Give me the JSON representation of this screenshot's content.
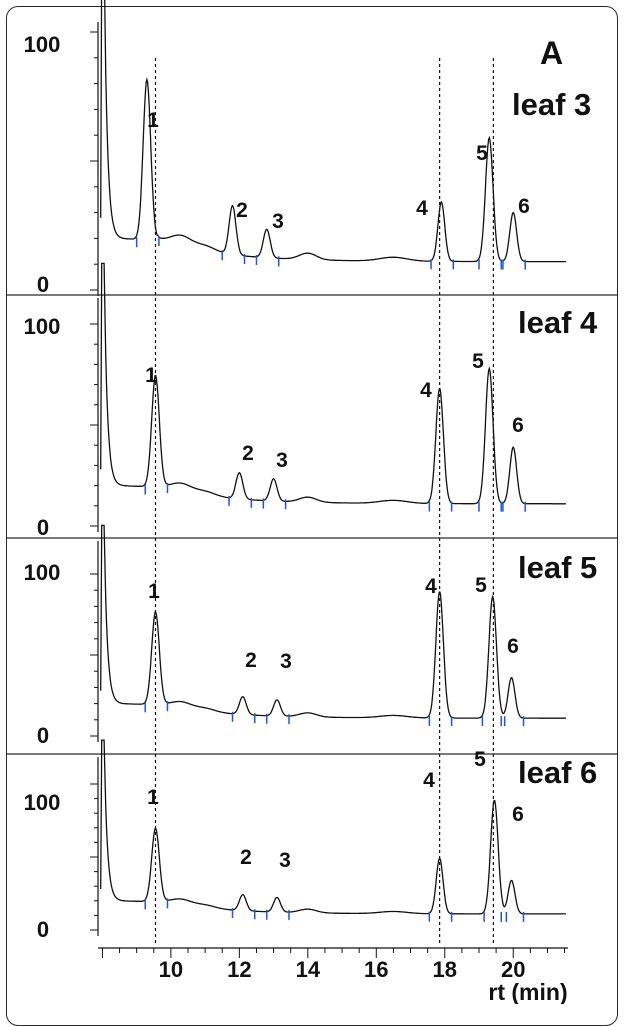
{
  "chart_data": {
    "type": "line",
    "panel_letter": "A",
    "x_axis": {
      "label": "rt (min)",
      "ticks": [
        10,
        12,
        14,
        16,
        18,
        20
      ],
      "range": [
        7.9,
        21.6
      ]
    },
    "y_axis": {
      "ticks": [
        "0",
        "100"
      ],
      "range": [
        0,
        100
      ]
    },
    "reference_lines_rt": [
      9.55,
      17.85,
      19.42
    ],
    "peak_rt": [
      9.3,
      11.8,
      12.8,
      17.9,
      19.3,
      20.0
    ],
    "panels": [
      {
        "title": "leaf 3",
        "y_tick_labels": [
          "100",
          "0"
        ],
        "peak_labels": [
          "1",
          "2",
          "3",
          "4",
          "5",
          "6"
        ],
        "peaks": [
          {
            "label": "1",
            "rt": 9.3,
            "height": 62
          },
          {
            "label": "2",
            "rt": 11.8,
            "height": 19
          },
          {
            "label": "3",
            "rt": 12.8,
            "height": 11
          },
          {
            "label": "4",
            "rt": 17.9,
            "height": 23
          },
          {
            "label": "5",
            "rt": 19.3,
            "height": 48
          },
          {
            "label": "6",
            "rt": 20.0,
            "height": 19
          }
        ]
      },
      {
        "title": "leaf 4",
        "y_tick_labels": [
          "100",
          "0"
        ],
        "peak_labels": [
          "1",
          "2",
          "3",
          "4",
          "5",
          "6"
        ],
        "peaks": [
          {
            "label": "1",
            "rt": 9.55,
            "height": 55
          },
          {
            "label": "2",
            "rt": 12.0,
            "height": 13
          },
          {
            "label": "3",
            "rt": 13.0,
            "height": 11
          },
          {
            "label": "4",
            "rt": 17.85,
            "height": 57
          },
          {
            "label": "5",
            "rt": 19.3,
            "height": 67
          },
          {
            "label": "6",
            "rt": 20.0,
            "height": 28
          }
        ]
      },
      {
        "title": "leaf 5",
        "y_tick_labels": [
          "100",
          "0"
        ],
        "peak_labels": [
          "1",
          "2",
          "3",
          "4",
          "5",
          "6"
        ],
        "peaks": [
          {
            "label": "1",
            "rt": 9.55,
            "height": 57
          },
          {
            "label": "2",
            "rt": 12.1,
            "height": 11
          },
          {
            "label": "3",
            "rt": 13.1,
            "height": 10
          },
          {
            "label": "4",
            "rt": 17.85,
            "height": 78
          },
          {
            "label": "5",
            "rt": 19.4,
            "height": 75
          },
          {
            "label": "6",
            "rt": 19.95,
            "height": 25
          }
        ]
      },
      {
        "title": "leaf 6",
        "y_tick_labels": [
          "100",
          "0"
        ],
        "peak_labels": [
          "1",
          "2",
          "3",
          "4",
          "5",
          "6"
        ],
        "peaks": [
          {
            "label": "1",
            "rt": 9.55,
            "height": 50
          },
          {
            "label": "2",
            "rt": 12.1,
            "height": 11
          },
          {
            "label": "3",
            "rt": 13.1,
            "height": 10
          },
          {
            "label": "4",
            "rt": 17.85,
            "height": 38
          },
          {
            "label": "5",
            "rt": 19.45,
            "height": 78
          },
          {
            "label": "6",
            "rt": 19.95,
            "height": 23
          }
        ]
      }
    ],
    "colors": {
      "trace": "#111111",
      "integration_marks": "#2255dd",
      "reference_line": "#111111"
    }
  }
}
